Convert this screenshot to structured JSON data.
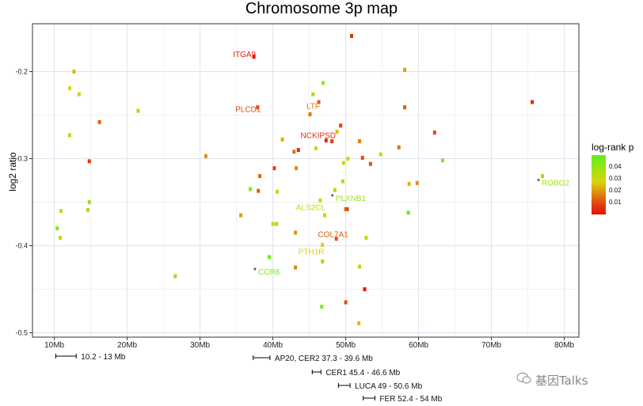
{
  "chart_data": {
    "type": "scatter",
    "title": "Chromosome 3p map",
    "xlabel": "",
    "ylabel": "log2 ratio",
    "xlim": [
      7,
      82
    ],
    "ylim": [
      -0.505,
      -0.145
    ],
    "x_ticks": [
      10,
      20,
      30,
      40,
      50,
      60,
      70,
      80
    ],
    "x_tick_labels": [
      "10Mb",
      "20Mb",
      "30Mb",
      "40Mb",
      "50Mb",
      "60Mb",
      "70Mb",
      "80Mb"
    ],
    "y_ticks": [
      -0.2,
      -0.3,
      -0.4,
      -0.5
    ],
    "y_tick_labels": [
      "-0.2",
      "-0.3",
      "-0.4",
      "-0.5"
    ],
    "grid": true,
    "legend": {
      "title": "log-rank p",
      "placement": "right",
      "ticks": [
        0.04,
        0.03,
        0.02,
        0.01
      ],
      "tick_labels": [
        "0.04",
        "0.03",
        "0.02",
        "0.01"
      ],
      "range": [
        0.0,
        0.05
      ],
      "colors": [
        "#e8100b",
        "#d9d40a",
        "#5ef01e"
      ]
    },
    "points": [
      {
        "x": 50.8,
        "y": -0.159,
        "p": 0.003
      },
      {
        "x": 37.4,
        "y": -0.183,
        "p": 0.001,
        "label": "ITGA9"
      },
      {
        "x": 12.7,
        "y": -0.2,
        "p": 0.022
      },
      {
        "x": 58.1,
        "y": -0.198,
        "p": 0.018
      },
      {
        "x": 46.9,
        "y": -0.213,
        "p": 0.038
      },
      {
        "x": 12.1,
        "y": -0.219,
        "p": 0.025
      },
      {
        "x": 13.4,
        "y": -0.226,
        "p": 0.03
      },
      {
        "x": 45.5,
        "y": -0.226,
        "p": 0.035
      },
      {
        "x": 75.6,
        "y": -0.235,
        "p": 0.003
      },
      {
        "x": 46.3,
        "y": -0.235,
        "p": 0.009
      },
      {
        "x": 37.9,
        "y": -0.241,
        "p": 0.008,
        "label": "PLCD1"
      },
      {
        "x": 58.1,
        "y": -0.241,
        "p": 0.01
      },
      {
        "x": 21.5,
        "y": -0.245,
        "p": 0.036
      },
      {
        "x": 45.1,
        "y": -0.249,
        "p": 0.013,
        "label": "LTF"
      },
      {
        "x": 16.2,
        "y": -0.258,
        "p": 0.01
      },
      {
        "x": 49.3,
        "y": -0.262,
        "p": 0.006
      },
      {
        "x": 48.8,
        "y": -0.269,
        "p": 0.022
      },
      {
        "x": 62.2,
        "y": -0.27,
        "p": 0.007
      },
      {
        "x": 12.1,
        "y": -0.273,
        "p": 0.033
      },
      {
        "x": 47.3,
        "y": -0.279,
        "p": 0.003,
        "label": "NCKIPSD"
      },
      {
        "x": 41.3,
        "y": -0.278,
        "p": 0.02
      },
      {
        "x": 48.1,
        "y": -0.28,
        "p": 0.006
      },
      {
        "x": 51.9,
        "y": -0.28,
        "p": 0.014
      },
      {
        "x": 57.3,
        "y": -0.287,
        "p": 0.013
      },
      {
        "x": 42.9,
        "y": -0.292,
        "p": 0.013
      },
      {
        "x": 43.5,
        "y": -0.29,
        "p": 0.003
      },
      {
        "x": 45.9,
        "y": -0.288,
        "p": 0.03
      },
      {
        "x": 30.8,
        "y": -0.297,
        "p": 0.016
      },
      {
        "x": 52.3,
        "y": -0.299,
        "p": 0.008
      },
      {
        "x": 54.8,
        "y": -0.295,
        "p": 0.028
      },
      {
        "x": 50.3,
        "y": -0.3,
        "p": 0.027
      },
      {
        "x": 63.3,
        "y": -0.302,
        "p": 0.042
      },
      {
        "x": 14.8,
        "y": -0.303,
        "p": 0.005
      },
      {
        "x": 49.7,
        "y": -0.305,
        "p": 0.027
      },
      {
        "x": 53.4,
        "y": -0.306,
        "p": 0.008
      },
      {
        "x": 40.2,
        "y": -0.311,
        "p": 0.006
      },
      {
        "x": 43.2,
        "y": -0.311,
        "p": 0.016
      },
      {
        "x": 38.2,
        "y": -0.32,
        "p": 0.011
      },
      {
        "x": 77.0,
        "y": -0.32,
        "p": 0.035,
        "label": "ROBO2",
        "starred": true
      },
      {
        "x": 49.6,
        "y": -0.326,
        "p": 0.032
      },
      {
        "x": 59.8,
        "y": -0.328,
        "p": 0.016
      },
      {
        "x": 58.7,
        "y": -0.329,
        "p": 0.021
      },
      {
        "x": 36.9,
        "y": -0.335,
        "p": 0.045
      },
      {
        "x": 38.0,
        "y": -0.337,
        "p": 0.009
      },
      {
        "x": 48.5,
        "y": -0.336,
        "p": 0.036,
        "label": "PLXNB1",
        "starred": true
      },
      {
        "x": 40.6,
        "y": -0.338,
        "p": 0.031
      },
      {
        "x": 46.5,
        "y": -0.348,
        "p": 0.03,
        "label": "ALS2CL"
      },
      {
        "x": 14.8,
        "y": -0.35,
        "p": 0.037
      },
      {
        "x": 10.9,
        "y": -0.36,
        "p": 0.027
      },
      {
        "x": 14.6,
        "y": -0.359,
        "p": 0.035
      },
      {
        "x": 50.2,
        "y": -0.358,
        "p": 0.004
      },
      {
        "x": 50.0,
        "y": -0.358,
        "p": 0.011
      },
      {
        "x": 58.6,
        "y": -0.362,
        "p": 0.048
      },
      {
        "x": 35.6,
        "y": -0.365,
        "p": 0.018
      },
      {
        "x": 47.1,
        "y": -0.365,
        "p": 0.024
      },
      {
        "x": 40.0,
        "y": -0.375,
        "p": 0.03
      },
      {
        "x": 40.5,
        "y": -0.375,
        "p": 0.032
      },
      {
        "x": 10.4,
        "y": -0.38,
        "p": 0.042
      },
      {
        "x": 43.1,
        "y": -0.385,
        "p": 0.017
      },
      {
        "x": 10.8,
        "y": -0.391,
        "p": 0.027
      },
      {
        "x": 52.8,
        "y": -0.391,
        "p": 0.031
      },
      {
        "x": 48.7,
        "y": -0.392,
        "p": 0.009,
        "label": "COL7A1"
      },
      {
        "x": 46.8,
        "y": -0.399,
        "p": 0.025,
        "label": "PTH1R"
      },
      {
        "x": 39.5,
        "y": -0.413,
        "p": 0.046,
        "label": "CCR8",
        "starred": true
      },
      {
        "x": 46.8,
        "y": -0.418,
        "p": 0.035
      },
      {
        "x": 43.1,
        "y": -0.425,
        "p": 0.015
      },
      {
        "x": 51.9,
        "y": -0.424,
        "p": 0.035
      },
      {
        "x": 26.6,
        "y": -0.435,
        "p": 0.037
      },
      {
        "x": 52.6,
        "y": -0.45,
        "p": 0.001
      },
      {
        "x": 50.0,
        "y": -0.465,
        "p": 0.008
      },
      {
        "x": 46.7,
        "y": -0.47,
        "p": 0.043
      },
      {
        "x": 51.8,
        "y": -0.489,
        "p": 0.022
      }
    ],
    "regions": [
      {
        "label": "10.2 - 13 Mb",
        "start": 10.2,
        "end": 13.0
      },
      {
        "label": "AP20, CER2 37.3 - 39.6 Mb",
        "start": 37.3,
        "end": 39.6
      },
      {
        "label": "CER1 45.4 - 46.6 Mb",
        "start": 45.4,
        "end": 46.6
      },
      {
        "label": "LUCA 49 - 50.6 Mb",
        "start": 49.0,
        "end": 50.6
      },
      {
        "label": "FER 52.4 - 54 Mb",
        "start": 52.4,
        "end": 54.0
      }
    ]
  },
  "watermark": "基因Talks"
}
